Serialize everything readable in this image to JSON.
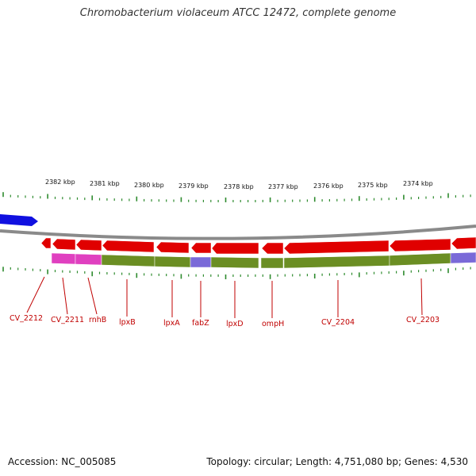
{
  "title": "Chromobacterium violaceum ATCC 12472, complete genome",
  "accession": "Accession: NC_005085",
  "summary": "Topology: circular; Length: 4,751,080 bp; Genes: 4,530",
  "scale_labels": [
    "2382 kbp",
    "2381 kbp",
    "2380 kbp",
    "2379 kbp",
    "2378 kbp",
    "2377 kbp",
    "2376 kbp",
    "2375 kbp",
    "2374 kbp"
  ],
  "gene_labels": [
    "CV_2212",
    "CV_2211",
    "rnhB",
    "lpxB",
    "lpxA",
    "fabZ",
    "lpxD",
    "ompH",
    "CV_2204",
    "CV_2203"
  ],
  "colors": {
    "forward_gene": "#1010e0",
    "reverse_gene": "#e00000",
    "backbone": "#8a8a8a",
    "tick": "#2e8b2e",
    "label": "#c00000",
    "cog_olive": "#6b8e23",
    "cog_magenta": "#e040c0",
    "cog_purple": "#7a6ad8"
  }
}
